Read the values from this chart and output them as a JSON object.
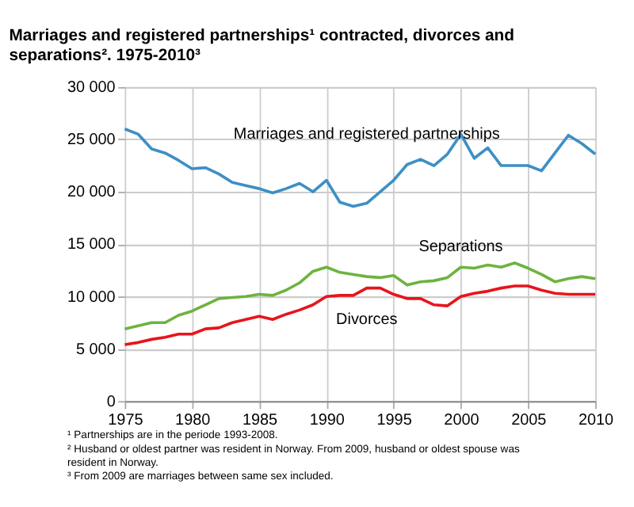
{
  "chart_data": {
    "type": "line",
    "title": "Marriages and registered partnerships¹ contracted, divorces and separations². 1975-2010³",
    "x": [
      1975,
      1976,
      1977,
      1978,
      1979,
      1980,
      1981,
      1982,
      1983,
      1984,
      1985,
      1986,
      1987,
      1988,
      1989,
      1990,
      1991,
      1992,
      1993,
      1994,
      1995,
      1996,
      1997,
      1998,
      1999,
      2000,
      2001,
      2002,
      2003,
      2004,
      2005,
      2006,
      2007,
      2008,
      2009,
      2010
    ],
    "series": [
      {
        "name": "Marriages and registered partnerships",
        "color": "#3d8fc6",
        "values": [
          26000,
          25500,
          24100,
          23700,
          23000,
          22200,
          22300,
          21700,
          20900,
          20600,
          20300,
          19900,
          20300,
          20800,
          20000,
          21100,
          19000,
          18600,
          18900,
          20000,
          21100,
          22600,
          23100,
          22500,
          23600,
          25500,
          23200,
          24200,
          22500,
          22500,
          22500,
          22000,
          23700,
          25400,
          24600,
          23600
        ]
      },
      {
        "name": "Separations",
        "color": "#6db33f",
        "values": [
          6900,
          7200,
          7500,
          7500,
          8200,
          8600,
          9200,
          9800,
          9900,
          10000,
          10200,
          10100,
          10600,
          11300,
          12400,
          12800,
          12300,
          12100,
          11900,
          11800,
          12000,
          11100,
          11400,
          11500,
          11800,
          12800,
          12700,
          13000,
          12800,
          13200,
          12700,
          12100,
          11400,
          11700,
          11900,
          11700
        ]
      },
      {
        "name": "Divorces",
        "color": "#e8141b",
        "values": [
          5400,
          5600,
          5900,
          6100,
          6400,
          6400,
          6900,
          7000,
          7500,
          7800,
          8100,
          7800,
          8300,
          8700,
          9200,
          10000,
          10100,
          10100,
          10800,
          10800,
          10200,
          9800,
          9800,
          9200,
          9100,
          10000,
          10300,
          10500,
          10800,
          11000,
          11000,
          10600,
          10300,
          10200,
          10200,
          10200
        ]
      }
    ],
    "xlim": [
      1975,
      2010
    ],
    "xticks": [
      1975,
      1980,
      1985,
      1990,
      1995,
      2000,
      2005,
      2010
    ],
    "ylim": [
      0,
      30000
    ],
    "yticks": [
      0,
      {
        "value": 5000,
        "label": "5 000"
      },
      {
        "value": 10000,
        "label": "10 000"
      },
      {
        "value": 15000,
        "label": "15 000"
      },
      {
        "value": 20000,
        "label": "20 000"
      },
      {
        "value": 25000,
        "label": "25 000"
      },
      {
        "value": 30000,
        "label": "30 000"
      }
    ],
    "grid": true,
    "legend": false,
    "marker": "none",
    "line_style": "solid",
    "annotations": [
      "¹ Partnerships are in the periode 1993-2008.",
      "² Husband or oldest partner was resident in Norway. From 2009, husband or oldest spouse was",
      "resident in Norway.",
      "³ From 2009 are marriages between same sex included."
    ]
  }
}
